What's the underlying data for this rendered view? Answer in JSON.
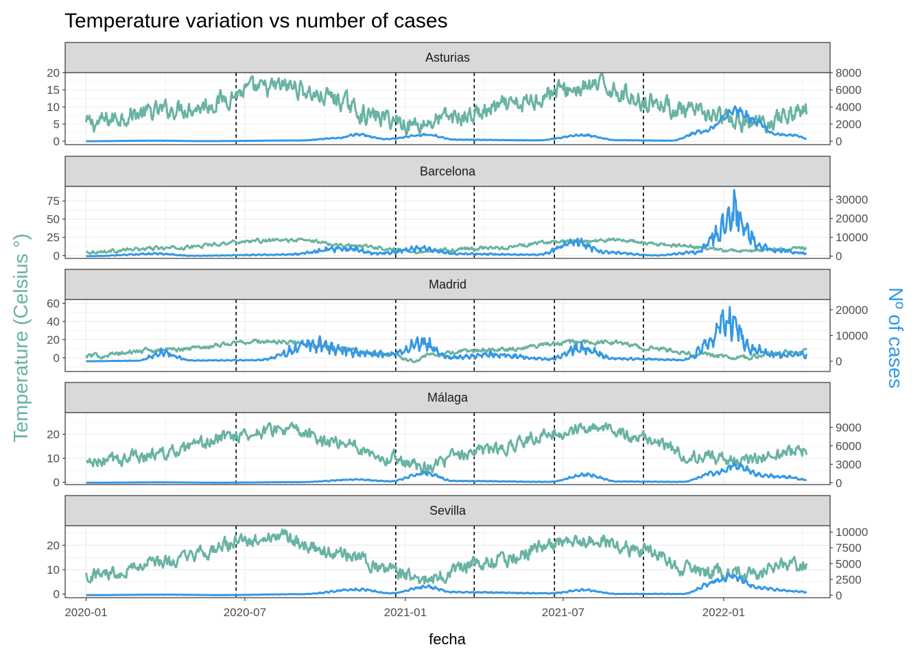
{
  "chart_data": {
    "type": "line",
    "title": "Temperature variation vs number of cases",
    "xlabel": "fecha",
    "ylabel_left": "Temperature (Celsius °)",
    "ylabel_right": "Nº of cases",
    "x_ticks": [
      "2020-01",
      "2020-07",
      "2021-01",
      "2021-07",
      "2022-01"
    ],
    "x_tick_dates": [
      "2020-01-01",
      "2020-07-01",
      "2021-01-01",
      "2021-07-01",
      "2022-01-01"
    ],
    "x_range": [
      "2019-12-08",
      "2022-05-03"
    ],
    "data_date_range": [
      "2020-01-01",
      "2022-04-06"
    ],
    "vlines": [
      "2020-06-21",
      "2020-12-21",
      "2021-03-21",
      "2021-06-21",
      "2021-10-01"
    ],
    "grid": true,
    "colors": {
      "temperature": "#69b3a2",
      "cases": "#3598e4",
      "strip_bg": "#d9d9d9"
    },
    "series_colors_by_axis": {
      "left": "temperature",
      "right": "cases"
    },
    "panels": [
      {
        "name": "Asturias",
        "temp_ylim": [
          -1,
          20
        ],
        "temp_ticks": [
          0,
          5,
          10,
          15,
          20
        ],
        "cases_ylim": [
          -400,
          8000
        ],
        "cases_ticks": [
          "0",
          "2000",
          "4000",
          "6000",
          "8000"
        ],
        "temp_keypoints": [
          [
            "2020-01-01",
            5
          ],
          [
            "2020-03-01",
            8
          ],
          [
            "2020-05-01",
            10
          ],
          [
            "2020-07-15",
            15
          ],
          [
            "2020-08-20",
            16
          ],
          [
            "2020-10-01",
            13
          ],
          [
            "2020-12-01",
            7
          ],
          [
            "2021-01-10",
            5
          ],
          [
            "2021-03-01",
            7
          ],
          [
            "2021-05-01",
            10
          ],
          [
            "2021-07-01",
            15
          ],
          [
            "2021-08-15",
            16
          ],
          [
            "2021-10-01",
            12
          ],
          [
            "2021-12-01",
            8
          ],
          [
            "2022-02-01",
            5
          ],
          [
            "2022-04-06",
            9
          ]
        ],
        "cases_keypoints": [
          [
            "2020-01-01",
            0
          ],
          [
            "2020-03-20",
            60
          ],
          [
            "2020-05-15",
            10
          ],
          [
            "2020-09-01",
            80
          ],
          [
            "2020-10-15",
            350
          ],
          [
            "2020-11-07",
            800
          ],
          [
            "2020-12-10",
            250
          ],
          [
            "2021-01-25",
            750
          ],
          [
            "2021-03-01",
            180
          ],
          [
            "2021-06-01",
            100
          ],
          [
            "2021-07-25",
            700
          ],
          [
            "2021-09-01",
            120
          ],
          [
            "2021-11-01",
            60
          ],
          [
            "2021-12-10",
            1200
          ],
          [
            "2022-01-15",
            3600
          ],
          [
            "2022-02-10",
            2200
          ],
          [
            "2022-03-01",
            800
          ],
          [
            "2022-03-25",
            700
          ],
          [
            "2022-04-06",
            300
          ]
        ],
        "temp_noise": 2.2,
        "cases_noise": 0.12
      },
      {
        "name": "Barcelona",
        "temp_ylim": [
          -4,
          95
        ],
        "temp_ticks": [
          0,
          25,
          50,
          75
        ],
        "cases_ylim": [
          -1200,
          37000
        ],
        "cases_ticks": [
          "0",
          "10000",
          "20000",
          "30000"
        ],
        "temp_keypoints": [
          [
            "2020-01-01",
            5
          ],
          [
            "2020-04-01",
            10
          ],
          [
            "2020-07-15",
            20
          ],
          [
            "2020-09-01",
            21
          ],
          [
            "2020-11-01",
            14
          ],
          [
            "2021-01-15",
            6
          ],
          [
            "2021-04-01",
            10
          ],
          [
            "2021-07-15",
            20
          ],
          [
            "2021-09-01",
            21
          ],
          [
            "2021-11-01",
            14
          ],
          [
            "2022-01-15",
            6
          ],
          [
            "2022-04-06",
            10
          ]
        ],
        "cases_keypoints": [
          [
            "2020-01-01",
            0
          ],
          [
            "2020-03-25",
            1200
          ],
          [
            "2020-05-01",
            200
          ],
          [
            "2020-08-15",
            800
          ],
          [
            "2020-10-25",
            4000
          ],
          [
            "2020-12-01",
            1500
          ],
          [
            "2021-01-20",
            4000
          ],
          [
            "2021-03-01",
            1200
          ],
          [
            "2021-06-01",
            800
          ],
          [
            "2021-07-15",
            7000
          ],
          [
            "2021-08-20",
            2000
          ],
          [
            "2021-10-15",
            400
          ],
          [
            "2021-12-01",
            2000
          ],
          [
            "2021-12-25",
            12000
          ],
          [
            "2022-01-05",
            18000
          ],
          [
            "2022-01-15",
            25000
          ],
          [
            "2022-01-25",
            16000
          ],
          [
            "2022-02-10",
            5000
          ],
          [
            "2022-03-01",
            3000
          ],
          [
            "2022-04-06",
            1500
          ]
        ],
        "temp_noise": 2.0,
        "cases_noise": 0.28
      },
      {
        "name": "Madrid",
        "temp_ylim": [
          -15,
          64
        ],
        "temp_ticks": [
          0,
          20,
          40,
          60
        ],
        "cases_ylim": [
          -4000,
          24000
        ],
        "cases_ticks": [
          "0",
          "10000",
          "20000"
        ],
        "temp_keypoints": [
          [
            "2020-01-01",
            2
          ],
          [
            "2020-04-01",
            9
          ],
          [
            "2020-07-20",
            18
          ],
          [
            "2020-08-20",
            17
          ],
          [
            "2020-10-15",
            10
          ],
          [
            "2020-12-15",
            4
          ],
          [
            "2021-01-10",
            -3
          ],
          [
            "2021-01-25",
            3
          ],
          [
            "2021-04-01",
            8
          ],
          [
            "2021-07-15",
            17
          ],
          [
            "2021-08-20",
            17
          ],
          [
            "2021-10-15",
            10
          ],
          [
            "2021-12-15",
            3
          ],
          [
            "2022-01-20",
            0
          ],
          [
            "2022-03-01",
            5
          ],
          [
            "2022-04-06",
            8
          ]
        ],
        "cases_keypoints": [
          [
            "2020-01-01",
            0
          ],
          [
            "2020-03-01",
            200
          ],
          [
            "2020-03-28",
            3500
          ],
          [
            "2020-05-01",
            300
          ],
          [
            "2020-07-15",
            400
          ],
          [
            "2020-09-20",
            6500
          ],
          [
            "2020-11-01",
            3500
          ],
          [
            "2020-12-15",
            2500
          ],
          [
            "2021-01-20",
            7000
          ],
          [
            "2021-02-20",
            1500
          ],
          [
            "2021-04-15",
            2500
          ],
          [
            "2021-06-15",
            800
          ],
          [
            "2021-07-20",
            5000
          ],
          [
            "2021-08-30",
            1000
          ],
          [
            "2021-11-15",
            500
          ],
          [
            "2021-12-20",
            7000
          ],
          [
            "2021-12-30",
            16000
          ],
          [
            "2022-01-15",
            14000
          ],
          [
            "2022-02-01",
            5000
          ],
          [
            "2022-03-01",
            2500
          ],
          [
            "2022-04-06",
            2500
          ]
        ],
        "temp_noise": 2.0,
        "cases_noise": 0.32
      },
      {
        "name": "Málaga",
        "temp_ylim": [
          -1,
          29
        ],
        "temp_ticks": [
          0,
          10,
          20
        ],
        "cases_ylim": [
          -300,
          11400
        ],
        "cases_ticks": [
          "0",
          "3000",
          "6000",
          "9000"
        ],
        "temp_keypoints": [
          [
            "2020-01-01",
            8
          ],
          [
            "2020-04-01",
            12
          ],
          [
            "2020-07-01",
            20
          ],
          [
            "2020-08-10",
            22
          ],
          [
            "2020-10-15",
            17
          ],
          [
            "2020-12-20",
            10
          ],
          [
            "2021-01-20",
            7
          ],
          [
            "2021-04-01",
            13
          ],
          [
            "2021-07-01",
            21
          ],
          [
            "2021-08-10",
            23
          ],
          [
            "2021-10-01",
            18
          ],
          [
            "2021-12-01",
            11
          ],
          [
            "2022-01-20",
            9
          ],
          [
            "2022-04-06",
            13
          ]
        ],
        "cases_keypoints": [
          [
            "2020-01-01",
            0
          ],
          [
            "2020-03-28",
            60
          ],
          [
            "2020-06-01",
            10
          ],
          [
            "2020-09-01",
            100
          ],
          [
            "2020-11-05",
            500
          ],
          [
            "2020-12-15",
            250
          ],
          [
            "2021-01-25",
            1600
          ],
          [
            "2021-02-25",
            300
          ],
          [
            "2021-06-15",
            150
          ],
          [
            "2021-07-28",
            1300
          ],
          [
            "2021-09-01",
            200
          ],
          [
            "2021-11-15",
            150
          ],
          [
            "2021-12-20",
            1500
          ],
          [
            "2022-01-15",
            2700
          ],
          [
            "2022-02-15",
            1200
          ],
          [
            "2022-03-15",
            900
          ],
          [
            "2022-04-06",
            500
          ]
        ],
        "temp_noise": 2.2,
        "cases_noise": 0.15
      },
      {
        "name": "Sevilla",
        "temp_ylim": [
          -1.5,
          28
        ],
        "temp_ticks": [
          0,
          10,
          20
        ],
        "cases_ylim": [
          -400,
          11000
        ],
        "cases_ticks": [
          "0",
          "2500",
          "5000",
          "7500",
          "10000"
        ],
        "temp_keypoints": [
          [
            "2020-01-01",
            8
          ],
          [
            "2020-04-01",
            13
          ],
          [
            "2020-07-01",
            21
          ],
          [
            "2020-08-05",
            24
          ],
          [
            "2020-10-15",
            17
          ],
          [
            "2020-12-15",
            9
          ],
          [
            "2021-01-15",
            6
          ],
          [
            "2021-04-01",
            13
          ],
          [
            "2021-07-01",
            21
          ],
          [
            "2021-08-10",
            22
          ],
          [
            "2021-10-01",
            18
          ],
          [
            "2021-12-01",
            9
          ],
          [
            "2022-01-20",
            8
          ],
          [
            "2022-04-06",
            12
          ]
        ],
        "cases_keypoints": [
          [
            "2020-01-01",
            0
          ],
          [
            "2020-04-01",
            80
          ],
          [
            "2020-06-01",
            10
          ],
          [
            "2020-09-01",
            150
          ],
          [
            "2020-11-10",
            900
          ],
          [
            "2020-12-15",
            300
          ],
          [
            "2021-01-25",
            1300
          ],
          [
            "2021-02-25",
            500
          ],
          [
            "2021-06-15",
            300
          ],
          [
            "2021-07-25",
            800
          ],
          [
            "2021-09-01",
            200
          ],
          [
            "2021-11-15",
            200
          ],
          [
            "2021-12-25",
            2200
          ],
          [
            "2022-01-10",
            3000
          ],
          [
            "2022-02-10",
            1200
          ],
          [
            "2022-03-15",
            700
          ],
          [
            "2022-04-06",
            500
          ]
        ],
        "temp_noise": 2.4,
        "cases_noise": 0.14
      }
    ]
  }
}
